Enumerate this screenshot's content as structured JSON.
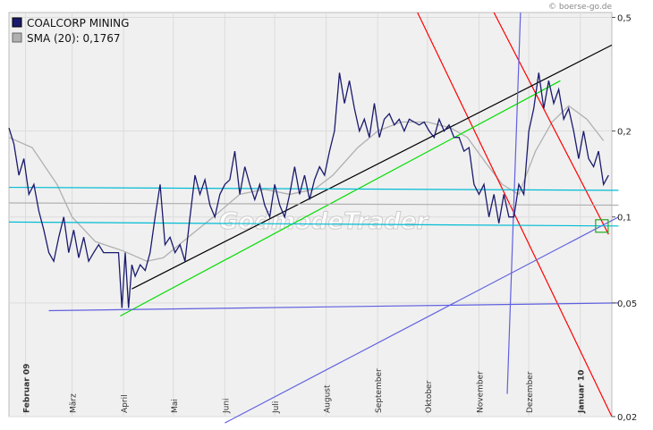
{
  "credit": "© boerse-go.de",
  "watermark": "GodmodeTrader",
  "legend": [
    {
      "label": "COALCORP MINING",
      "color": "#1a1a6e"
    },
    {
      "label": "SMA (20): 0,1767",
      "color": "#b0b0b0"
    }
  ],
  "chart_data": {
    "type": "line",
    "y_scale": "log",
    "ylim": [
      0.02,
      0.52
    ],
    "y_ticks": [
      {
        "value": 0.5,
        "label": "0,5"
      },
      {
        "value": 0.2,
        "label": "0,2"
      },
      {
        "value": 0.1,
        "label": "0,1"
      },
      {
        "value": 0.05,
        "label": "0,05"
      },
      {
        "value": 0.02,
        "label": "0,02"
      }
    ],
    "x_range": [
      "2009-01-22",
      "2010-01-20"
    ],
    "x_ticks": [
      {
        "date": "2009-02-01",
        "label": "Februar 09",
        "bold": true
      },
      {
        "date": "2009-03-01",
        "label": "März"
      },
      {
        "date": "2009-04-01",
        "label": "April"
      },
      {
        "date": "2009-05-01",
        "label": "Mai"
      },
      {
        "date": "2009-06-01",
        "label": "Juni"
      },
      {
        "date": "2009-07-01",
        "label": "Juli"
      },
      {
        "date": "2009-08-01",
        "label": "August"
      },
      {
        "date": "2009-09-01",
        "label": "September"
      },
      {
        "date": "2009-10-01",
        "label": "Oktober"
      },
      {
        "date": "2009-11-01",
        "label": "November"
      },
      {
        "date": "2009-12-01",
        "label": "Dezember"
      },
      {
        "date": "2010-01-01",
        "label": "Januar 10",
        "bold": true
      }
    ],
    "series": [
      {
        "name": "COALCORP MINING",
        "color": "#1a1a6e",
        "points": [
          [
            "2009-01-22",
            0.205
          ],
          [
            "2009-01-25",
            0.18
          ],
          [
            "2009-01-28",
            0.14
          ],
          [
            "2009-01-31",
            0.16
          ],
          [
            "2009-02-03",
            0.12
          ],
          [
            "2009-02-06",
            0.13
          ],
          [
            "2009-02-09",
            0.105
          ],
          [
            "2009-02-12",
            0.09
          ],
          [
            "2009-02-15",
            0.075
          ],
          [
            "2009-02-18",
            0.07
          ],
          [
            "2009-02-21",
            0.085
          ],
          [
            "2009-02-24",
            0.1
          ],
          [
            "2009-02-27",
            0.075
          ],
          [
            "2009-03-02",
            0.09
          ],
          [
            "2009-03-05",
            0.072
          ],
          [
            "2009-03-08",
            0.085
          ],
          [
            "2009-03-11",
            0.07
          ],
          [
            "2009-03-14",
            0.075
          ],
          [
            "2009-03-17",
            0.08
          ],
          [
            "2009-03-20",
            0.075
          ],
          [
            "2009-03-23",
            0.075
          ],
          [
            "2009-03-26",
            0.075
          ],
          [
            "2009-03-29",
            0.075
          ],
          [
            "2009-03-31",
            0.048
          ],
          [
            "2009-04-02",
            0.075
          ],
          [
            "2009-04-04",
            0.048
          ],
          [
            "2009-04-06",
            0.068
          ],
          [
            "2009-04-08",
            0.062
          ],
          [
            "2009-04-11",
            0.068
          ],
          [
            "2009-04-14",
            0.065
          ],
          [
            "2009-04-17",
            0.075
          ],
          [
            "2009-04-20",
            0.1
          ],
          [
            "2009-04-23",
            0.13
          ],
          [
            "2009-04-26",
            0.08
          ],
          [
            "2009-04-29",
            0.085
          ],
          [
            "2009-05-02",
            0.075
          ],
          [
            "2009-05-05",
            0.08
          ],
          [
            "2009-05-08",
            0.07
          ],
          [
            "2009-05-11",
            0.1
          ],
          [
            "2009-05-14",
            0.14
          ],
          [
            "2009-05-17",
            0.12
          ],
          [
            "2009-05-20",
            0.135
          ],
          [
            "2009-05-23",
            0.11
          ],
          [
            "2009-05-26",
            0.1
          ],
          [
            "2009-05-29",
            0.12
          ],
          [
            "2009-06-01",
            0.13
          ],
          [
            "2009-06-04",
            0.135
          ],
          [
            "2009-06-07",
            0.17
          ],
          [
            "2009-06-10",
            0.12
          ],
          [
            "2009-06-13",
            0.15
          ],
          [
            "2009-06-16",
            0.13
          ],
          [
            "2009-06-19",
            0.115
          ],
          [
            "2009-06-22",
            0.13
          ],
          [
            "2009-06-25",
            0.11
          ],
          [
            "2009-06-28",
            0.1
          ],
          [
            "2009-07-01",
            0.13
          ],
          [
            "2009-07-04",
            0.11
          ],
          [
            "2009-07-07",
            0.1
          ],
          [
            "2009-07-10",
            0.12
          ],
          [
            "2009-07-13",
            0.15
          ],
          [
            "2009-07-16",
            0.12
          ],
          [
            "2009-07-19",
            0.14
          ],
          [
            "2009-07-22",
            0.115
          ],
          [
            "2009-07-25",
            0.135
          ],
          [
            "2009-07-28",
            0.15
          ],
          [
            "2009-07-31",
            0.14
          ],
          [
            "2009-08-03",
            0.17
          ],
          [
            "2009-08-06",
            0.2
          ],
          [
            "2009-08-09",
            0.32
          ],
          [
            "2009-08-12",
            0.25
          ],
          [
            "2009-08-15",
            0.3
          ],
          [
            "2009-08-18",
            0.24
          ],
          [
            "2009-08-21",
            0.2
          ],
          [
            "2009-08-24",
            0.22
          ],
          [
            "2009-08-27",
            0.19
          ],
          [
            "2009-08-30",
            0.25
          ],
          [
            "2009-09-02",
            0.19
          ],
          [
            "2009-09-05",
            0.22
          ],
          [
            "2009-09-08",
            0.23
          ],
          [
            "2009-09-11",
            0.21
          ],
          [
            "2009-09-14",
            0.22
          ],
          [
            "2009-09-17",
            0.2
          ],
          [
            "2009-09-20",
            0.22
          ],
          [
            "2009-09-23",
            0.215
          ],
          [
            "2009-09-26",
            0.21
          ],
          [
            "2009-09-29",
            0.215
          ],
          [
            "2009-10-02",
            0.2
          ],
          [
            "2009-10-05",
            0.19
          ],
          [
            "2009-10-08",
            0.22
          ],
          [
            "2009-10-11",
            0.2
          ],
          [
            "2009-10-14",
            0.21
          ],
          [
            "2009-10-17",
            0.19
          ],
          [
            "2009-10-20",
            0.19
          ],
          [
            "2009-10-23",
            0.17
          ],
          [
            "2009-10-26",
            0.175
          ],
          [
            "2009-10-29",
            0.13
          ],
          [
            "2009-11-01",
            0.12
          ],
          [
            "2009-11-04",
            0.13
          ],
          [
            "2009-11-07",
            0.1
          ],
          [
            "2009-11-10",
            0.12
          ],
          [
            "2009-11-13",
            0.095
          ],
          [
            "2009-11-16",
            0.12
          ],
          [
            "2009-11-19",
            0.1
          ],
          [
            "2009-11-22",
            0.1
          ],
          [
            "2009-11-25",
            0.13
          ],
          [
            "2009-11-28",
            0.12
          ],
          [
            "2009-12-01",
            0.2
          ],
          [
            "2009-12-04",
            0.24
          ],
          [
            "2009-12-07",
            0.32
          ],
          [
            "2009-12-10",
            0.24
          ],
          [
            "2009-12-13",
            0.3
          ],
          [
            "2009-12-16",
            0.25
          ],
          [
            "2009-12-19",
            0.28
          ],
          [
            "2009-12-22",
            0.22
          ],
          [
            "2009-12-25",
            0.24
          ],
          [
            "2009-12-28",
            0.2
          ],
          [
            "2009-12-31",
            0.16
          ],
          [
            "2010-01-03",
            0.2
          ],
          [
            "2010-01-06",
            0.16
          ],
          [
            "2010-01-09",
            0.15
          ],
          [
            "2010-01-12",
            0.17
          ],
          [
            "2010-01-15",
            0.13
          ],
          [
            "2010-01-18",
            0.14
          ]
        ]
      },
      {
        "name": "SMA (20)",
        "color": "#b0b0b0",
        "points": [
          [
            "2009-01-22",
            0.19
          ],
          [
            "2009-02-05",
            0.175
          ],
          [
            "2009-02-20",
            0.13
          ],
          [
            "2009-03-01",
            0.1
          ],
          [
            "2009-03-15",
            0.082
          ],
          [
            "2009-04-01",
            0.076
          ],
          [
            "2009-04-15",
            0.07
          ],
          [
            "2009-04-25",
            0.072
          ],
          [
            "2009-05-10",
            0.085
          ],
          [
            "2009-05-25",
            0.1
          ],
          [
            "2009-06-10",
            0.12
          ],
          [
            "2009-06-25",
            0.125
          ],
          [
            "2009-07-10",
            0.12
          ],
          [
            "2009-07-25",
            0.125
          ],
          [
            "2009-08-05",
            0.14
          ],
          [
            "2009-08-20",
            0.175
          ],
          [
            "2009-09-01",
            0.2
          ],
          [
            "2009-09-15",
            0.215
          ],
          [
            "2009-10-01",
            0.215
          ],
          [
            "2009-10-15",
            0.205
          ],
          [
            "2009-10-25",
            0.19
          ],
          [
            "2009-11-05",
            0.155
          ],
          [
            "2009-11-15",
            0.13
          ],
          [
            "2009-11-25",
            0.12
          ],
          [
            "2009-12-05",
            0.17
          ],
          [
            "2009-12-15",
            0.215
          ],
          [
            "2009-12-25",
            0.245
          ],
          [
            "2010-01-05",
            0.22
          ],
          [
            "2010-01-15",
            0.185
          ]
        ]
      }
    ],
    "trendlines": [
      {
        "color": "#ff0000",
        "from": [
          "2009-09-25",
          0.52
        ],
        "to": [
          "2010-01-20",
          0.02
        ]
      },
      {
        "color": "#ff0000",
        "from": [
          "2009-11-10",
          0.52
        ],
        "to": [
          "2010-01-18",
          0.087
        ]
      },
      {
        "color": "#000000",
        "from": [
          "2009-04-06",
          0.056
        ],
        "to": [
          "2010-01-20",
          0.4
        ]
      },
      {
        "color": "#00dd00",
        "from": [
          "2009-03-30",
          0.045
        ],
        "to": [
          "2009-12-20",
          0.3
        ]
      },
      {
        "color": "#6060e0",
        "from": [
          "2009-11-26",
          0.52
        ],
        "to": [
          "2009-11-18",
          0.024
        ]
      },
      {
        "color": "#6060e0",
        "from": [
          "2009-06-01",
          0.019
        ],
        "to": [
          "2010-01-24",
          0.1
        ]
      },
      {
        "color": "#6060e0",
        "from": [
          "2009-02-15",
          0.047
        ],
        "to": [
          "2010-01-24",
          0.05
        ]
      },
      {
        "color": "#00bcd4",
        "from": [
          "2009-01-22",
          0.127
        ],
        "to": [
          "2010-01-24",
          0.124
        ]
      },
      {
        "color": "#00bcd4",
        "from": [
          "2009-01-22",
          0.096
        ],
        "to": [
          "2010-01-24",
          0.093
        ]
      },
      {
        "color": "#b0b0b0",
        "from": [
          "2009-01-22",
          0.112
        ],
        "to": [
          "2010-01-24",
          0.11
        ]
      }
    ],
    "marker": {
      "date": "2010-01-14",
      "value": 0.093,
      "color": "#22aa22"
    },
    "grid": true,
    "legend_position": "top-left"
  }
}
